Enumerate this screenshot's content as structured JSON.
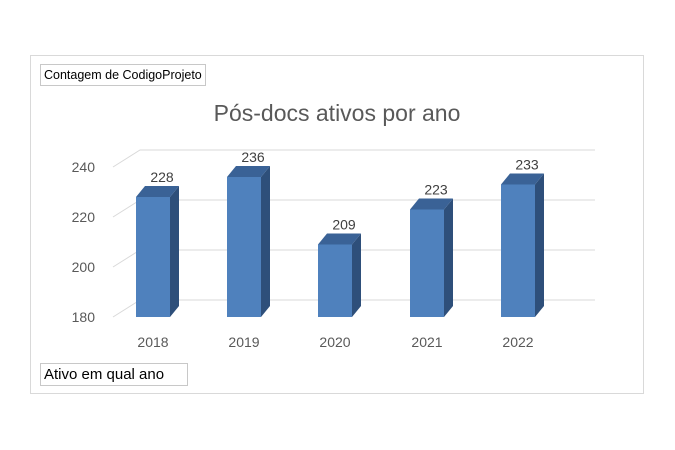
{
  "pivot_fields": {
    "values_field": "Contagem de CodigoProjeto",
    "axis_field": "Ativo em qual ano"
  },
  "colors": {
    "bar_front": "#4F81BD",
    "bar_side": "#2E4F7A",
    "bar_top": "#3A6296",
    "gridline": "#D9D9D9",
    "text": "#595959"
  },
  "chart_data": {
    "type": "bar",
    "subtype": "3d-column",
    "title": "Pós-docs ativos por ano",
    "xlabel": "",
    "ylabel": "",
    "categories": [
      "2018",
      "2019",
      "2020",
      "2021",
      "2022"
    ],
    "series": [
      {
        "values": [
          228,
          236,
          209,
          223,
          233
        ]
      }
    ],
    "ylim": [
      180,
      240
    ],
    "yticks": [
      "180",
      "200",
      "220",
      "240"
    ],
    "data_labels": true,
    "grid": true,
    "legend": "none"
  }
}
